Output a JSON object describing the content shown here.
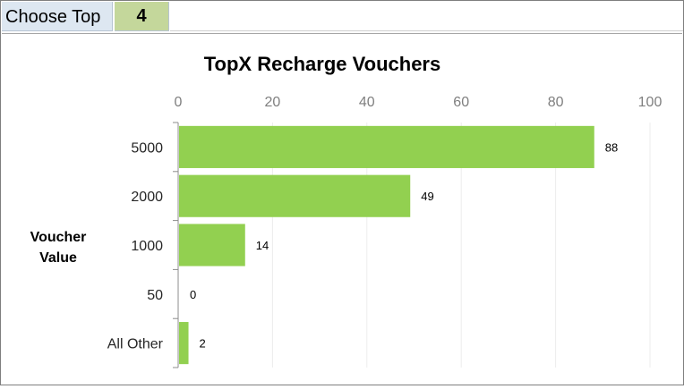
{
  "selector": {
    "label": "Choose Top",
    "value": "4"
  },
  "chart_data": {
    "type": "bar",
    "orientation": "horizontal",
    "title": "TopX Recharge Vouchers",
    "ylabel_lines": [
      "Voucher",
      "Value"
    ],
    "categories": [
      "5000",
      "2000",
      "1000",
      "50",
      "All Other"
    ],
    "values": [
      88,
      49,
      14,
      0,
      2
    ],
    "xlim": [
      0,
      100
    ],
    "xticks": [
      0,
      20,
      40,
      60,
      80,
      100
    ],
    "axis_position": "top",
    "grid": true,
    "legend": "none",
    "bar_color": "#92d050"
  }
}
